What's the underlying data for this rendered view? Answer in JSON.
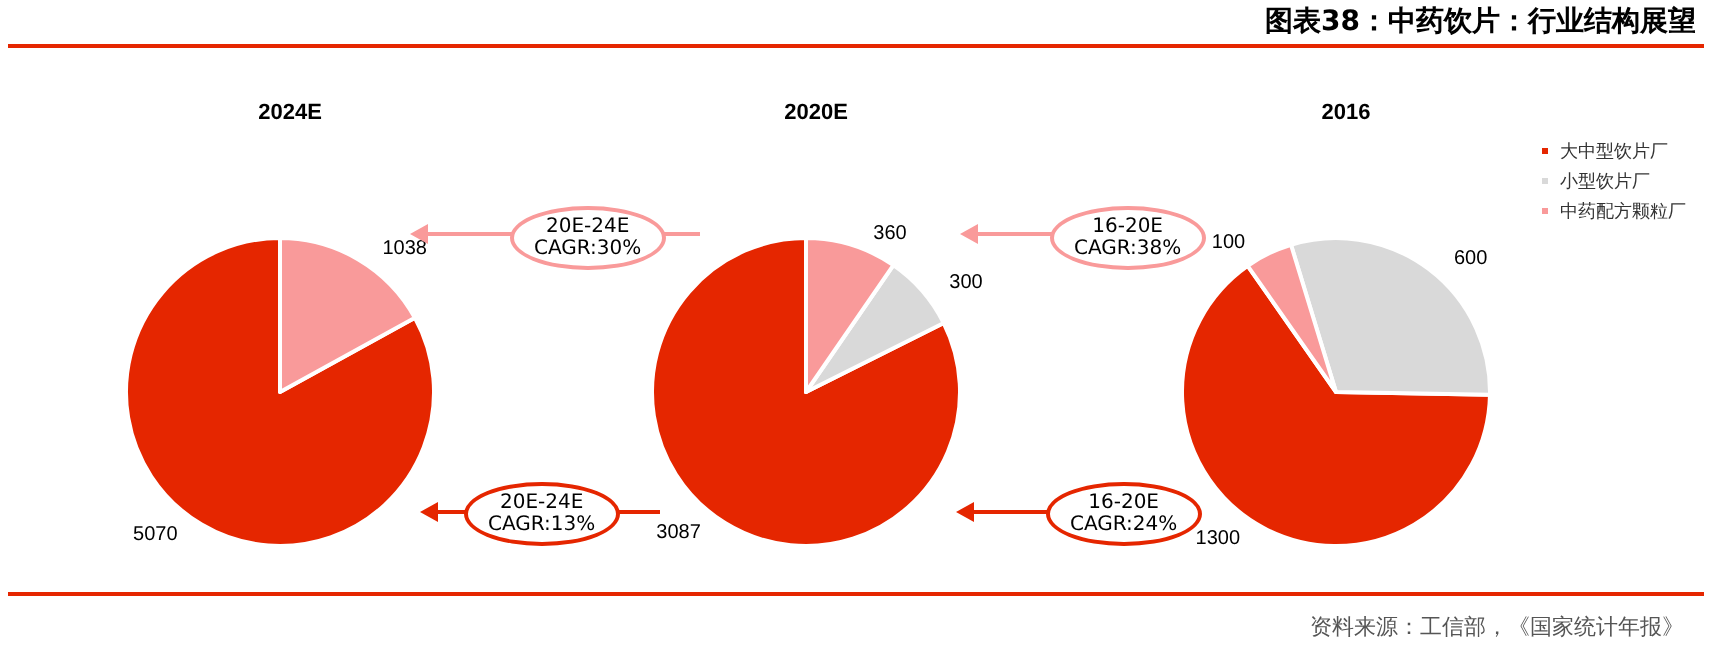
{
  "chart_data": [
    {
      "type": "pie",
      "title": "2024E",
      "values": [
        5070,
        null,
        1038
      ],
      "colors": [
        "#e52600",
        "#d9d9d9",
        "#f99a9a"
      ],
      "data_labels": true
    },
    {
      "type": "pie",
      "title": "2020E",
      "values": [
        3087,
        300,
        360
      ],
      "colors": [
        "#e52600",
        "#d9d9d9",
        "#f99a9a"
      ],
      "data_labels": true
    },
    {
      "type": "pie",
      "title": "2016",
      "categories": [
        "大中型饮片厂",
        "小型饮片厂",
        "中药配方颗粒厂"
      ],
      "values": [
        1300,
        600,
        100
      ],
      "colors": [
        "#e52600",
        "#d9d9d9",
        "#f99a9a"
      ],
      "data_labels": true,
      "legend": "top right"
    },
    {
      "type": "other",
      "title": "图表38：中药饮片：行业结构展望",
      "annotations": [
        "16-20E\nCAGR:38%",
        "20E-24E\nCAGR:30%",
        "16-20E\nCAGR:24%",
        "20E-24E\nCAGR:13%",
        "资料来源：工信部，《国家统计年报》"
      ]
    }
  ]
}
